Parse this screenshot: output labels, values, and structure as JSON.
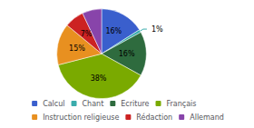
{
  "chart_data": {
    "type": "pie",
    "categories": [
      "Calcul",
      "Chant",
      "Ecriture",
      "Français",
      "Instruction religieuse",
      "Rédaction",
      "Allemand"
    ],
    "values": [
      16,
      1,
      16,
      38,
      15,
      7,
      7
    ],
    "value_labels": [
      "16%",
      "1%",
      "16%",
      "38%",
      "15%",
      "7%",
      "7%"
    ],
    "colors": [
      "#3a5fcd",
      "#3aacac",
      "#2e6b3e",
      "#7aaa00",
      "#e89020",
      "#cc2222",
      "#8844aa"
    ],
    "data_labels": true,
    "legend": "bottom"
  }
}
